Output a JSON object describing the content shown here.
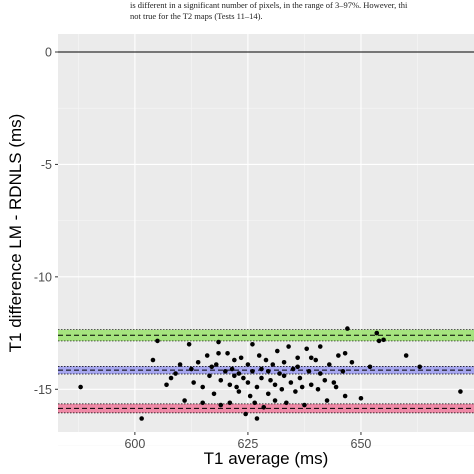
{
  "caption": {
    "line1": "is different in a significant number of pixels, in the range of 3–97%. However, thi",
    "line2": "not true for the T2 maps (Tests 11–14)."
  },
  "chart_data": {
    "type": "scatter",
    "title": "",
    "xlabel": "T1 average (ms)",
    "ylabel": "T1 difference LM - RDNLS (ms)",
    "xlim": [
      583,
      675
    ],
    "ylim": [
      -16.9,
      0.8
    ],
    "x_ticks": [
      600,
      625,
      650
    ],
    "y_ticks": [
      0,
      -5,
      -10,
      -15
    ],
    "grid": true,
    "zero_line": 0,
    "bands": [
      {
        "name": "upper limit of agreement",
        "center": -12.6,
        "low": -12.85,
        "high": -12.35,
        "color": "#8ee05a"
      },
      {
        "name": "mean difference",
        "center": -14.15,
        "low": -14.32,
        "high": -13.98,
        "color": "#8f8ff0"
      },
      {
        "name": "lower limit of agreement",
        "center": -15.85,
        "low": -16.05,
        "high": -15.65,
        "color": "#f06a90"
      }
    ],
    "points": [
      [
        588,
        -14.9
      ],
      [
        601.5,
        -16.3
      ],
      [
        605,
        -12.85
      ],
      [
        604,
        -13.7
      ],
      [
        608,
        -14.5
      ],
      [
        609,
        -14.3
      ],
      [
        607,
        -14.8
      ],
      [
        610,
        -13.9
      ],
      [
        611,
        -15.5
      ],
      [
        612,
        -13.0
      ],
      [
        612.5,
        -14.1
      ],
      [
        613,
        -14.7
      ],
      [
        614,
        -13.8
      ],
      [
        615,
        -14.9
      ],
      [
        615,
        -15.6
      ],
      [
        616,
        -13.5
      ],
      [
        616.5,
        -14.4
      ],
      [
        617,
        -14.0
      ],
      [
        617.5,
        -15.2
      ],
      [
        618,
        -13.9
      ],
      [
        618.5,
        -12.9
      ],
      [
        619,
        -14.6
      ],
      [
        619,
        -15.7
      ],
      [
        620,
        -14.2
      ],
      [
        620.5,
        -13.4
      ],
      [
        621,
        -14.8
      ],
      [
        621,
        -15.6
      ],
      [
        621.5,
        -14.1
      ],
      [
        622,
        -13.7
      ],
      [
        622.5,
        -14.9
      ],
      [
        623,
        -14.3
      ],
      [
        623,
        -15.1
      ],
      [
        623.5,
        -13.6
      ],
      [
        624,
        -14.5
      ],
      [
        624.5,
        -16.1
      ],
      [
        625,
        -13.9
      ],
      [
        625,
        -14.7
      ],
      [
        625.5,
        -15.3
      ],
      [
        626,
        -14.2
      ],
      [
        626,
        -13.0
      ],
      [
        626.5,
        -15.6
      ],
      [
        627,
        -14.9
      ],
      [
        627,
        -16.3
      ],
      [
        627.5,
        -13.5
      ],
      [
        628,
        -14.5
      ],
      [
        628.5,
        -15.8
      ],
      [
        629,
        -13.7
      ],
      [
        629.5,
        -14.2
      ],
      [
        629.5,
        -15.2
      ],
      [
        630,
        -14.6
      ],
      [
        630.5,
        -13.9
      ],
      [
        631,
        -14.8
      ],
      [
        631,
        -15.5
      ],
      [
        631.5,
        -13.3
      ],
      [
        632,
        -14.3
      ],
      [
        632.5,
        -15.0
      ],
      [
        633,
        -13.8
      ],
      [
        633,
        -14.4
      ],
      [
        633.5,
        -15.6
      ],
      [
        634,
        -13.1
      ],
      [
        634.5,
        -14.7
      ],
      [
        635,
        -14.1
      ],
      [
        635.5,
        -15.1
      ],
      [
        636,
        -13.6
      ],
      [
        636.5,
        -14.5
      ],
      [
        637,
        -14.9
      ],
      [
        637.5,
        -15.7
      ],
      [
        638,
        -13.2
      ],
      [
        638.5,
        -14.2
      ],
      [
        639,
        -14.8
      ],
      [
        640,
        -13.7
      ],
      [
        640.5,
        -15.0
      ],
      [
        641,
        -14.3
      ],
      [
        642,
        -14.6
      ],
      [
        642.5,
        -15.5
      ],
      [
        643,
        -13.9
      ],
      [
        644,
        -14.7
      ],
      [
        644.5,
        -14.9
      ],
      [
        645,
        -13.5
      ],
      [
        646,
        -14.2
      ],
      [
        646.5,
        -15.3
      ],
      [
        647,
        -12.3
      ],
      [
        648,
        -13.8
      ],
      [
        650,
        -15.4
      ],
      [
        652,
        -14.0
      ],
      [
        653.5,
        -12.5
      ],
      [
        654,
        -12.85
      ],
      [
        655,
        -12.8
      ],
      [
        660,
        -13.5
      ],
      [
        663,
        -14.0
      ],
      [
        672,
        -15.1
      ],
      [
        641,
        -13.1
      ],
      [
        646.5,
        -13.4
      ],
      [
        618.5,
        -13.4
      ],
      [
        622,
        -14.4
      ],
      [
        628,
        -14.1
      ],
      [
        636,
        -14.0
      ],
      [
        639,
        -13.6
      ]
    ]
  }
}
